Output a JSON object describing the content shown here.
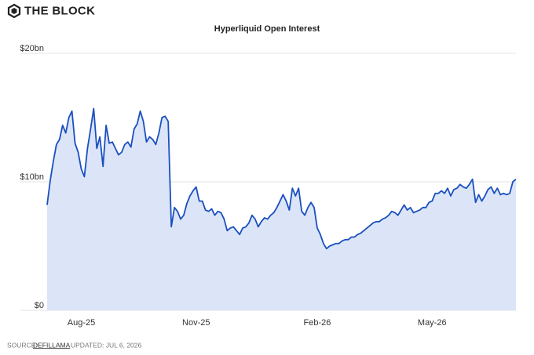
{
  "header": {
    "brand": "THE BLOCK"
  },
  "footer": {
    "source_label": "SOURCE:",
    "source": "DEFILLAMA",
    "updated": "UPDATED: JUL 6, 2026"
  },
  "chart_data": {
    "type": "area",
    "title": "Hyperliquid Open Interest",
    "color": "#1a4fbf",
    "fill_color": "#dbe5f7",
    "grid": true,
    "ylim": [
      0,
      20
    ],
    "yticks": [
      {
        "value": 0,
        "label": "$0"
      },
      {
        "value": 10,
        "label": "$10bn"
      },
      {
        "value": 20,
        "label": "$20bn"
      }
    ],
    "categories": [
      null,
      null,
      null,
      null,
      null,
      null,
      null,
      null,
      null,
      null,
      null,
      "Aug-25",
      null,
      null,
      null,
      null,
      null,
      null,
      null,
      null,
      null,
      null,
      null,
      null,
      null,
      null,
      null,
      null,
      null,
      null,
      null,
      null,
      null,
      null,
      null,
      null,
      null,
      null,
      null,
      null,
      null,
      null,
      null,
      null,
      null,
      null,
      null,
      null,
      "Nov-25",
      null,
      null,
      null,
      null,
      null,
      null,
      null,
      null,
      null,
      null,
      null,
      null,
      null,
      null,
      null,
      null,
      null,
      null,
      null,
      null,
      null,
      null,
      null,
      null,
      null,
      null,
      null,
      null,
      null,
      null,
      null,
      null,
      null,
      null,
      null,
      null,
      null,
      null,
      "Feb-26",
      null,
      null,
      null,
      null,
      null,
      null,
      null,
      null,
      null,
      null,
      null,
      null,
      null,
      null,
      null,
      null,
      null,
      null,
      null,
      null,
      null,
      null,
      null,
      null,
      null,
      null,
      null,
      null,
      null,
      null,
      null,
      null,
      null,
      null,
      null,
      null,
      "May-26",
      null,
      null,
      null,
      null,
      null,
      null,
      null,
      null,
      null,
      null,
      null,
      null,
      null,
      null,
      null,
      null,
      null,
      null,
      null,
      null,
      null,
      null,
      null,
      null,
      null,
      null,
      null
    ],
    "values": [
      8.2,
      10.1,
      11.6,
      12.9,
      13.3,
      14.4,
      13.8,
      15.0,
      15.5,
      13.0,
      12.3,
      11.0,
      10.4,
      12.6,
      14.1,
      15.7,
      12.6,
      13.5,
      11.2,
      14.4,
      13.0,
      13.1,
      12.6,
      12.1,
      12.3,
      12.9,
      13.1,
      12.7,
      14.1,
      14.5,
      15.5,
      14.7,
      13.1,
      13.5,
      13.3,
      12.9,
      13.8,
      15.0,
      15.1,
      14.7,
      6.5,
      8.0,
      7.7,
      7.1,
      7.4,
      8.3,
      8.9,
      9.3,
      9.6,
      8.5,
      8.5,
      7.8,
      7.7,
      7.9,
      7.4,
      7.7,
      7.6,
      7.1,
      6.2,
      6.4,
      6.5,
      6.2,
      5.9,
      6.4,
      6.5,
      6.8,
      7.4,
      7.1,
      6.5,
      6.9,
      7.2,
      7.1,
      7.4,
      7.6,
      8.0,
      8.5,
      9.0,
      8.5,
      7.8,
      9.5,
      8.9,
      9.5,
      7.7,
      7.4,
      8.0,
      8.4,
      8.0,
      6.4,
      5.9,
      5.2,
      4.8,
      5.0,
      5.1,
      5.2,
      5.2,
      5.4,
      5.5,
      5.5,
      5.7,
      5.7,
      5.9,
      6.0,
      6.2,
      6.4,
      6.6,
      6.8,
      6.9,
      6.9,
      7.1,
      7.2,
      7.4,
      7.7,
      7.6,
      7.4,
      7.8,
      8.2,
      7.8,
      8.0,
      7.6,
      7.7,
      7.8,
      8.0,
      8.0,
      8.4,
      8.5,
      9.1,
      9.1,
      9.3,
      9.1,
      9.5,
      8.9,
      9.4,
      9.5,
      9.8,
      9.6,
      9.5,
      9.8,
      10.2,
      8.4,
      9.0,
      8.5,
      8.9,
      9.4,
      9.6,
      9.1,
      9.5,
      9.0,
      9.1,
      9.0,
      9.1,
      10.0,
      10.2
    ]
  }
}
